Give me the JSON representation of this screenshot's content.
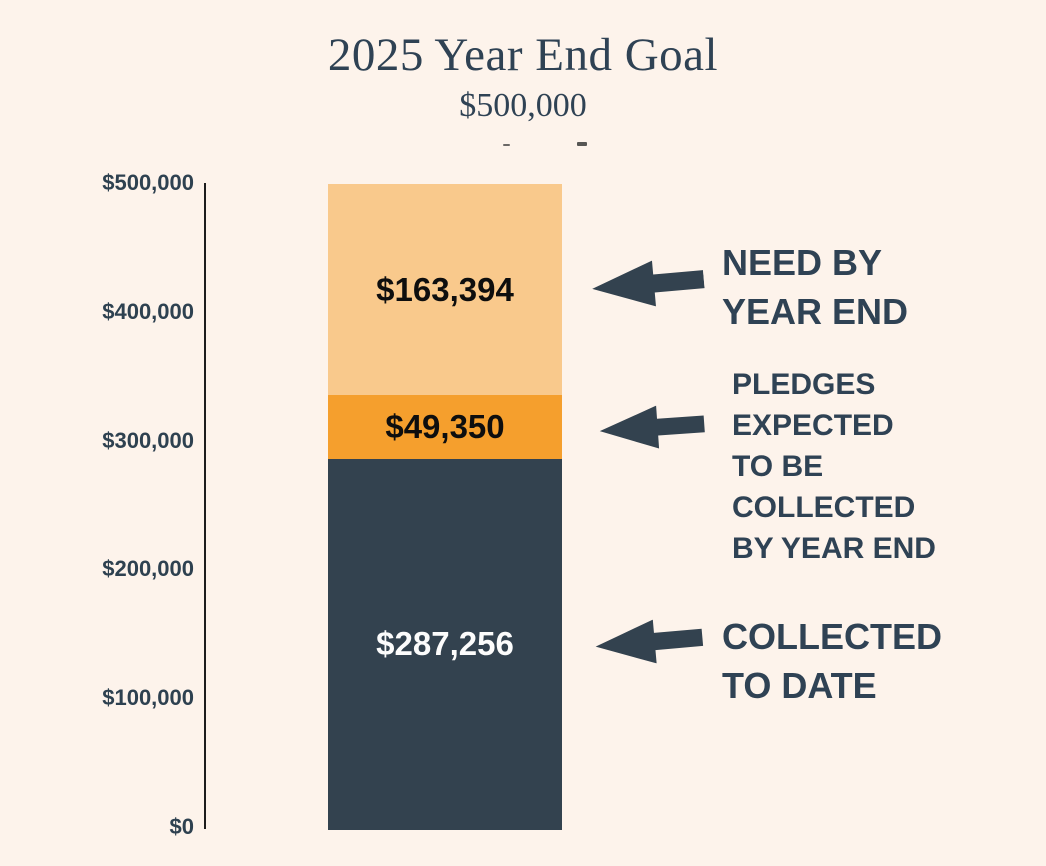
{
  "page": {
    "background_color": "#FDF3EB",
    "accent_dark": "#33424F",
    "accent_orange": "#F59F2D",
    "accent_peach": "#F9C98C"
  },
  "chart_data": {
    "type": "bar",
    "subtype": "single-stacked-column-thermometer",
    "title": "2025 Year End Goal",
    "subtitle_goal": "$500,000",
    "goal_value": 500000,
    "ylim": [
      0,
      500000
    ],
    "ytick_labels": [
      "$500,000",
      "$400,000",
      "$300,000",
      "$200,000",
      "$100,000",
      "$0"
    ],
    "grid": false,
    "segments": [
      {
        "name": "NEED BY YEAR END",
        "label": "$163,394",
        "value": 163394,
        "color": "#F9C98C",
        "text_color": "#0E0E0E"
      },
      {
        "name": "PLEDGES EXPECTED TO BE COLLECTED BY YEAR END",
        "label": "$49,350",
        "value": 49350,
        "color": "#F59F2D",
        "text_color": "#0E0E0E"
      },
      {
        "name": "COLLECTED TO DATE",
        "label": "$287,256",
        "value": 287256,
        "color": "#33424F",
        "text_color": "#FCFCFC"
      }
    ],
    "annotations": [
      {
        "icon": "left-arrow-icon",
        "lines": [
          "NEED BY",
          "YEAR END"
        ]
      },
      {
        "icon": "left-arrow-icon",
        "lines": [
          "PLEDGES",
          "EXPECTED",
          "TO BE",
          "COLLECTED",
          "BY YEAR END"
        ]
      },
      {
        "icon": "left-arrow-icon",
        "lines": [
          "COLLECTED",
          "TO DATE"
        ]
      }
    ]
  }
}
